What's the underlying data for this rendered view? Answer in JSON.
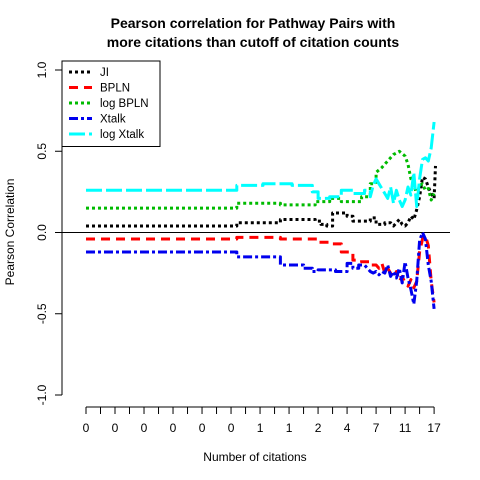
{
  "chart_data": {
    "type": "line",
    "title_lines": [
      "Pearson correlation for Pathway Pairs with",
      "more citations than cutoff of citation counts"
    ],
    "xlabel": "Number of citations",
    "ylabel": "Pearson Correlation",
    "ylim": [
      -1.0,
      1.0
    ],
    "yticks": [
      "-1.0",
      "-0.5",
      "0.0",
      "0.5",
      "1.0"
    ],
    "yticks_values": [
      -1.0,
      -0.5,
      0.0,
      0.5,
      1.0
    ],
    "xtick_labels": [
      "0",
      "0",
      "0",
      "0",
      "0",
      "0",
      "1",
      "1",
      "2",
      "4",
      "7",
      "11",
      "17"
    ],
    "xtick_positions": [
      0,
      10,
      20,
      30,
      40,
      50,
      60,
      70,
      80,
      90,
      100,
      110,
      120
    ],
    "x_range": [
      0,
      121
    ],
    "reference_line_y": 0.0,
    "legend_position": "top-left",
    "series": [
      {
        "name": "JI",
        "color": "#000000",
        "dash": "3,3",
        "points": [
          [
            0,
            0.04
          ],
          [
            52,
            0.04
          ],
          [
            52,
            0.06
          ],
          [
            67,
            0.06
          ],
          [
            67,
            0.08
          ],
          [
            79,
            0.08
          ],
          [
            79,
            0.07
          ],
          [
            81,
            0.07
          ],
          [
            81,
            0.05
          ],
          [
            83,
            0.05
          ],
          [
            83,
            0.04
          ],
          [
            85,
            0.04
          ],
          [
            85,
            0.12
          ],
          [
            90,
            0.12
          ],
          [
            90,
            0.1
          ],
          [
            92,
            0.1
          ],
          [
            92,
            0.07
          ],
          [
            98,
            0.07
          ],
          [
            98,
            0.09
          ],
          [
            100,
            0.09
          ],
          [
            100,
            0.05
          ],
          [
            103,
            0.05
          ],
          [
            103,
            0.06
          ],
          [
            105,
            0.06
          ],
          [
            106,
            0.04
          ],
          [
            107,
            0.06
          ],
          [
            108,
            0.08
          ],
          [
            109,
            0.05
          ],
          [
            110,
            0.04
          ],
          [
            111,
            0.06
          ],
          [
            112,
            0.1
          ],
          [
            113,
            0.08
          ],
          [
            114,
            0.14
          ],
          [
            115,
            0.22
          ],
          [
            116,
            0.34
          ],
          [
            117,
            0.33
          ],
          [
            118,
            0.28
          ],
          [
            119,
            0.24
          ],
          [
            120,
            0.21
          ],
          [
            120.5,
            0.41
          ]
        ]
      },
      {
        "name": "BPLN",
        "color": "#ff0000",
        "dash": "9,6",
        "points": [
          [
            0,
            -0.04
          ],
          [
            52,
            -0.04
          ],
          [
            52,
            -0.03
          ],
          [
            67,
            -0.03
          ],
          [
            67,
            -0.04
          ],
          [
            80,
            -0.04
          ],
          [
            80,
            -0.06
          ],
          [
            84,
            -0.06
          ],
          [
            84,
            -0.07
          ],
          [
            88,
            -0.07
          ],
          [
            88,
            -0.12
          ],
          [
            92,
            -0.12
          ],
          [
            92,
            -0.17
          ],
          [
            95,
            -0.17
          ],
          [
            95,
            -0.18
          ],
          [
            98,
            -0.18
          ],
          [
            98,
            -0.2
          ],
          [
            100,
            -0.2
          ],
          [
            101,
            -0.22
          ],
          [
            102,
            -0.19
          ],
          [
            103,
            -0.25
          ],
          [
            104,
            -0.22
          ],
          [
            105,
            -0.25
          ],
          [
            106,
            -0.28
          ],
          [
            107,
            -0.24
          ],
          [
            108,
            -0.3
          ],
          [
            109,
            -0.27
          ],
          [
            110,
            -0.31
          ],
          [
            111,
            -0.33
          ],
          [
            112,
            -0.29
          ],
          [
            113,
            -0.34
          ],
          [
            114,
            -0.3
          ],
          [
            115,
            -0.12
          ],
          [
            116,
            -0.04
          ],
          [
            117,
            -0.02
          ],
          [
            118,
            -0.08
          ],
          [
            119,
            -0.3
          ],
          [
            120,
            -0.43
          ]
        ]
      },
      {
        "name": "log BPLN",
        "color": "#00bb00",
        "dash": "3,3",
        "points": [
          [
            0,
            0.15
          ],
          [
            52,
            0.15
          ],
          [
            52,
            0.18
          ],
          [
            67,
            0.18
          ],
          [
            67,
            0.17
          ],
          [
            79,
            0.17
          ],
          [
            79,
            0.19
          ],
          [
            84,
            0.19
          ],
          [
            84,
            0.21
          ],
          [
            88,
            0.21
          ],
          [
            88,
            0.19
          ],
          [
            95,
            0.19
          ],
          [
            95,
            0.22
          ],
          [
            98,
            0.22
          ],
          [
            98,
            0.3
          ],
          [
            100,
            0.3
          ],
          [
            100,
            0.37
          ],
          [
            102,
            0.4
          ],
          [
            104,
            0.44
          ],
          [
            106,
            0.48
          ],
          [
            108,
            0.5
          ],
          [
            110,
            0.47
          ],
          [
            111,
            0.42
          ],
          [
            112,
            0.33
          ],
          [
            113,
            0.3
          ],
          [
            114,
            0.23
          ],
          [
            115,
            0.29
          ],
          [
            116,
            0.3
          ],
          [
            117,
            0.26
          ],
          [
            118,
            0.27
          ],
          [
            119,
            0.2
          ],
          [
            120,
            0.24
          ]
        ]
      },
      {
        "name": "Xtalk",
        "color": "#0000ee",
        "dash": "9,3,3,3",
        "points": [
          [
            0,
            -0.12
          ],
          [
            52,
            -0.12
          ],
          [
            52,
            -0.15
          ],
          [
            67,
            -0.15
          ],
          [
            67,
            -0.2
          ],
          [
            75,
            -0.2
          ],
          [
            75,
            -0.22
          ],
          [
            78,
            -0.22
          ],
          [
            78,
            -0.24
          ],
          [
            80,
            -0.24
          ],
          [
            80,
            -0.23
          ],
          [
            86,
            -0.23
          ],
          [
            86,
            -0.24
          ],
          [
            90,
            -0.24
          ],
          [
            90,
            -0.19
          ],
          [
            92,
            -0.19
          ],
          [
            92,
            -0.22
          ],
          [
            94,
            -0.22
          ],
          [
            94,
            -0.2
          ],
          [
            96,
            -0.2
          ],
          [
            97,
            -0.22
          ],
          [
            98,
            -0.24
          ],
          [
            99,
            -0.25
          ],
          [
            100,
            -0.24
          ],
          [
            101,
            -0.26
          ],
          [
            102,
            -0.24
          ],
          [
            103,
            -0.25
          ],
          [
            104,
            -0.2
          ],
          [
            105,
            -0.27
          ],
          [
            106,
            -0.24
          ],
          [
            107,
            -0.28
          ],
          [
            108,
            -0.22
          ],
          [
            109,
            -0.31
          ],
          [
            110,
            -0.18
          ],
          [
            111,
            -0.28
          ],
          [
            112,
            -0.35
          ],
          [
            113,
            -0.44
          ],
          [
            114,
            -0.3
          ],
          [
            115,
            -0.05
          ],
          [
            116,
            0.0
          ],
          [
            117,
            -0.04
          ],
          [
            118,
            -0.2
          ],
          [
            119,
            -0.3
          ],
          [
            120,
            -0.47
          ]
        ]
      },
      {
        "name": "log Xtalk",
        "color": "#00ffff",
        "dash": "16,4",
        "points": [
          [
            0,
            0.26
          ],
          [
            52,
            0.26
          ],
          [
            52,
            0.29
          ],
          [
            61,
            0.29
          ],
          [
            61,
            0.3
          ],
          [
            71,
            0.3
          ],
          [
            71,
            0.29
          ],
          [
            78,
            0.29
          ],
          [
            78,
            0.25
          ],
          [
            80,
            0.25
          ],
          [
            80,
            0.21
          ],
          [
            84,
            0.21
          ],
          [
            84,
            0.22
          ],
          [
            88,
            0.22
          ],
          [
            88,
            0.26
          ],
          [
            92,
            0.26
          ],
          [
            92,
            0.24
          ],
          [
            96,
            0.24
          ],
          [
            96,
            0.26
          ],
          [
            98,
            0.26
          ],
          [
            98,
            0.22
          ],
          [
            99,
            0.29
          ],
          [
            100,
            0.33
          ],
          [
            101,
            0.3
          ],
          [
            102,
            0.27
          ],
          [
            103,
            0.24
          ],
          [
            104,
            0.21
          ],
          [
            105,
            0.28
          ],
          [
            106,
            0.18
          ],
          [
            107,
            0.26
          ],
          [
            108,
            0.2
          ],
          [
            109,
            0.16
          ],
          [
            110,
            0.2
          ],
          [
            111,
            0.28
          ],
          [
            112,
            0.23
          ],
          [
            113,
            0.37
          ],
          [
            114,
            0.16
          ],
          [
            115,
            0.33
          ],
          [
            116,
            0.45
          ],
          [
            117,
            0.46
          ],
          [
            118,
            0.44
          ],
          [
            119,
            0.52
          ],
          [
            120,
            0.68
          ]
        ]
      }
    ]
  }
}
